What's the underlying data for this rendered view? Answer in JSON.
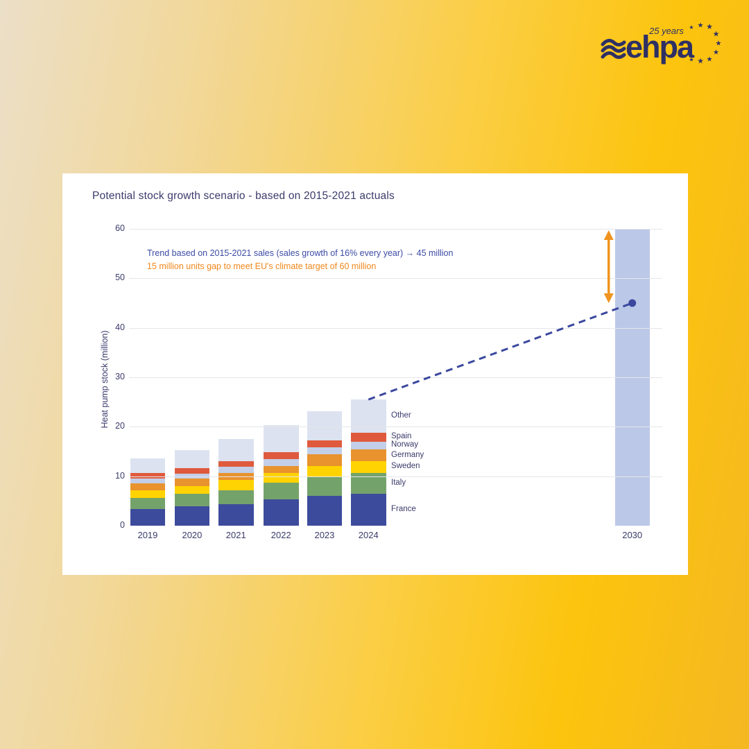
{
  "logo": {
    "brand": "ehpa",
    "tagline": "25 years"
  },
  "chart_data": {
    "type": "bar",
    "stacked": true,
    "title": "Potential stock growth scenario - based on 2015-2021 actuals",
    "xlabel": "",
    "ylabel": "Heat pump stock (million)",
    "ylim": [
      0,
      60
    ],
    "yticks": [
      0,
      10,
      20,
      30,
      40,
      50,
      60
    ],
    "grid": true,
    "legend_position": "right-of-2024-bar",
    "categories": [
      "2019",
      "2020",
      "2021",
      "2022",
      "2023",
      "2024"
    ],
    "series": [
      {
        "name": "France",
        "color": "#3d4b9c",
        "values": [
          3.4,
          3.9,
          4.3,
          5.3,
          6.0,
          6.4
        ]
      },
      {
        "name": "Italy",
        "color": "#74a26b",
        "values": [
          2.2,
          2.5,
          2.9,
          3.4,
          3.8,
          4.3
        ]
      },
      {
        "name": "Sweden",
        "color": "#ffd301",
        "values": [
          1.5,
          1.6,
          2.0,
          1.9,
          2.2,
          2.3
        ]
      },
      {
        "name": "Germany",
        "color": "#e8932e",
        "values": [
          1.4,
          1.5,
          1.4,
          1.5,
          2.4,
          2.4
        ]
      },
      {
        "name": "Norway",
        "color": "#c3cfe8",
        "values": [
          1.1,
          1.0,
          1.3,
          1.4,
          1.4,
          1.6
        ]
      },
      {
        "name": "Spain",
        "color": "#df5a3d",
        "values": [
          1.0,
          1.1,
          1.1,
          1.3,
          1.4,
          1.8
        ]
      },
      {
        "name": "Other",
        "color": "#dce2f0",
        "values": [
          3.0,
          3.7,
          4.5,
          5.5,
          6.0,
          6.7
        ]
      }
    ],
    "totals": [
      13.6,
      15.3,
      17.5,
      20.3,
      23.2,
      25.5
    ],
    "projection": {
      "year": "2030",
      "target_value": 60,
      "bar_color": "#bcc8e8",
      "trend_value": 45,
      "trend_from_value": 25.5,
      "trend_style": "dashed",
      "trend_color": "#3b489e",
      "gap_from": 45,
      "gap_to": 60,
      "gap_arrow_color": "#f0941f"
    },
    "annotations": [
      {
        "text": "Trend based on 2015-2021 sales (sales growth of 16% every year) → 45 million",
        "color": "#3c4ba5"
      },
      {
        "text": "15 million units gap to meet EU's climate target of 60 million",
        "color": "#f0871c"
      }
    ]
  }
}
